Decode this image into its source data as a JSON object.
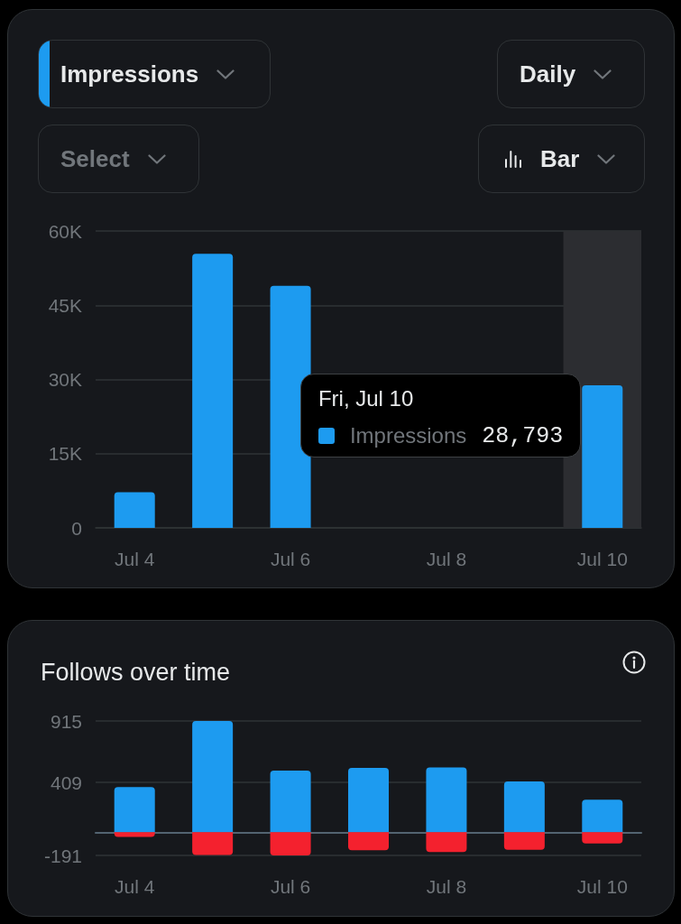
{
  "chart_data": [
    {
      "type": "bar",
      "categories": [
        "Jul 4",
        null,
        "Jul 6",
        null,
        "Jul 8",
        null,
        "Jul 10"
      ],
      "series": [
        {
          "name": "Impressions",
          "color": "#1d9bf0",
          "values": [
            7200,
            55400,
            48900,
            null,
            null,
            null,
            28793
          ]
        }
      ],
      "ylim": [
        0,
        60000
      ],
      "yticks": [
        0,
        {
          "value": 15000,
          "label": "15K"
        },
        {
          "value": 30000,
          "label": "30K"
        },
        {
          "value": 45000,
          "label": "45K"
        },
        {
          "value": 60000,
          "label": "60K"
        }
      ],
      "grid": "y",
      "bands": [
        {
          "axis": "x",
          "from": "Jul 10",
          "to": "Jul 10",
          "color": "#2c2d31"
        }
      ],
      "annotations": [
        "Impressions",
        "Daily",
        "Select",
        "Bar",
        "Fri, Jul 10",
        "28,793"
      ]
    },
    {
      "type": "bar",
      "title": "Follows over time",
      "categories": [
        "Jul 4",
        null,
        "Jul 6",
        null,
        "Jul 8",
        null,
        "Jul 10"
      ],
      "stacked": true,
      "series": [
        {
          "color": "#1d9bf0",
          "values": [
            372,
            915,
            507,
            529,
            533,
            418,
            268
          ]
        },
        {
          "color": "#f4212e",
          "values": [
            -39,
            -188,
            -191,
            -149,
            -163,
            -145,
            -92
          ]
        }
      ],
      "ylim": [
        -191,
        915
      ],
      "yticks": [
        -191,
        409,
        915
      ],
      "grid": "y"
    }
  ]
}
